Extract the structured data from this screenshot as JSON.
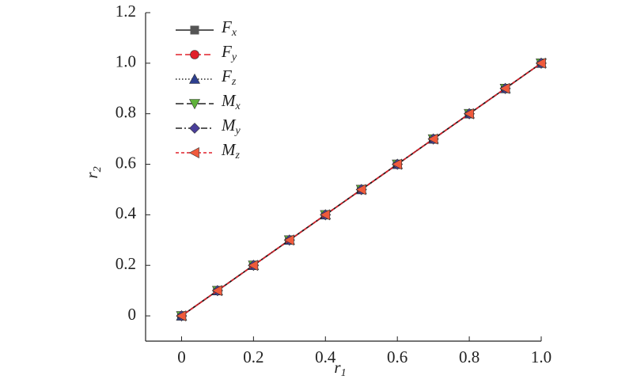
{
  "chart_data": {
    "type": "line",
    "x_label": "r1",
    "y_label": "r2",
    "x": [
      0,
      0.1,
      0.2,
      0.3,
      0.4,
      0.5,
      0.6,
      0.7,
      0.8,
      0.9,
      1
    ],
    "series": [
      {
        "name": "Fx",
        "color": "#222222",
        "marker_color": "#555555",
        "marker": "square",
        "dash": "none",
        "values": [
          0,
          0.1,
          0.2,
          0.3,
          0.4,
          0.5,
          0.6,
          0.7,
          0.8,
          0.9,
          1
        ]
      },
      {
        "name": "Fy",
        "color": "#e0202a",
        "marker_color": "#e0202a",
        "marker": "circle",
        "dash": "8 4",
        "values": [
          0,
          0.1,
          0.2,
          0.3,
          0.4,
          0.5,
          0.6,
          0.7,
          0.8,
          0.9,
          1
        ]
      },
      {
        "name": "Fz",
        "color": "#222222",
        "marker_color": "#2d3f8f",
        "marker": "triangle-up",
        "dash": "1.5 2.5",
        "values": [
          0,
          0.1,
          0.2,
          0.3,
          0.4,
          0.5,
          0.6,
          0.7,
          0.8,
          0.9,
          1
        ]
      },
      {
        "name": "Mx",
        "color": "#222222",
        "marker_color": "#5fb23a",
        "marker": "triangle-down",
        "dash": "10 4",
        "values": [
          0,
          0.1,
          0.2,
          0.3,
          0.4,
          0.5,
          0.6,
          0.7,
          0.8,
          0.9,
          1
        ]
      },
      {
        "name": "My",
        "color": "#222222",
        "marker_color": "#4a3f9a",
        "marker": "diamond",
        "dash": "8 3 2 3",
        "values": [
          0,
          0.1,
          0.2,
          0.3,
          0.4,
          0.5,
          0.6,
          0.7,
          0.8,
          0.9,
          1
        ]
      },
      {
        "name": "Mz",
        "color": "#e0202a",
        "marker_color": "#f05a3c",
        "marker": "triangle-left",
        "dash": "4 3",
        "values": [
          0,
          0.1,
          0.2,
          0.3,
          0.4,
          0.5,
          0.6,
          0.7,
          0.8,
          0.9,
          1
        ]
      }
    ],
    "xlim": [
      -0.1,
      1
    ],
    "ylim": [
      -0.1,
      1.2
    ],
    "xticks": [
      0,
      0.2,
      0.4,
      0.6,
      0.8,
      {
        "value": 1,
        "label": "1.0"
      }
    ],
    "yticks": [
      0,
      0.2,
      0.4,
      0.6,
      0.8,
      {
        "value": 1,
        "label": "1.0"
      },
      1.2
    ],
    "legend": "upper left"
  }
}
